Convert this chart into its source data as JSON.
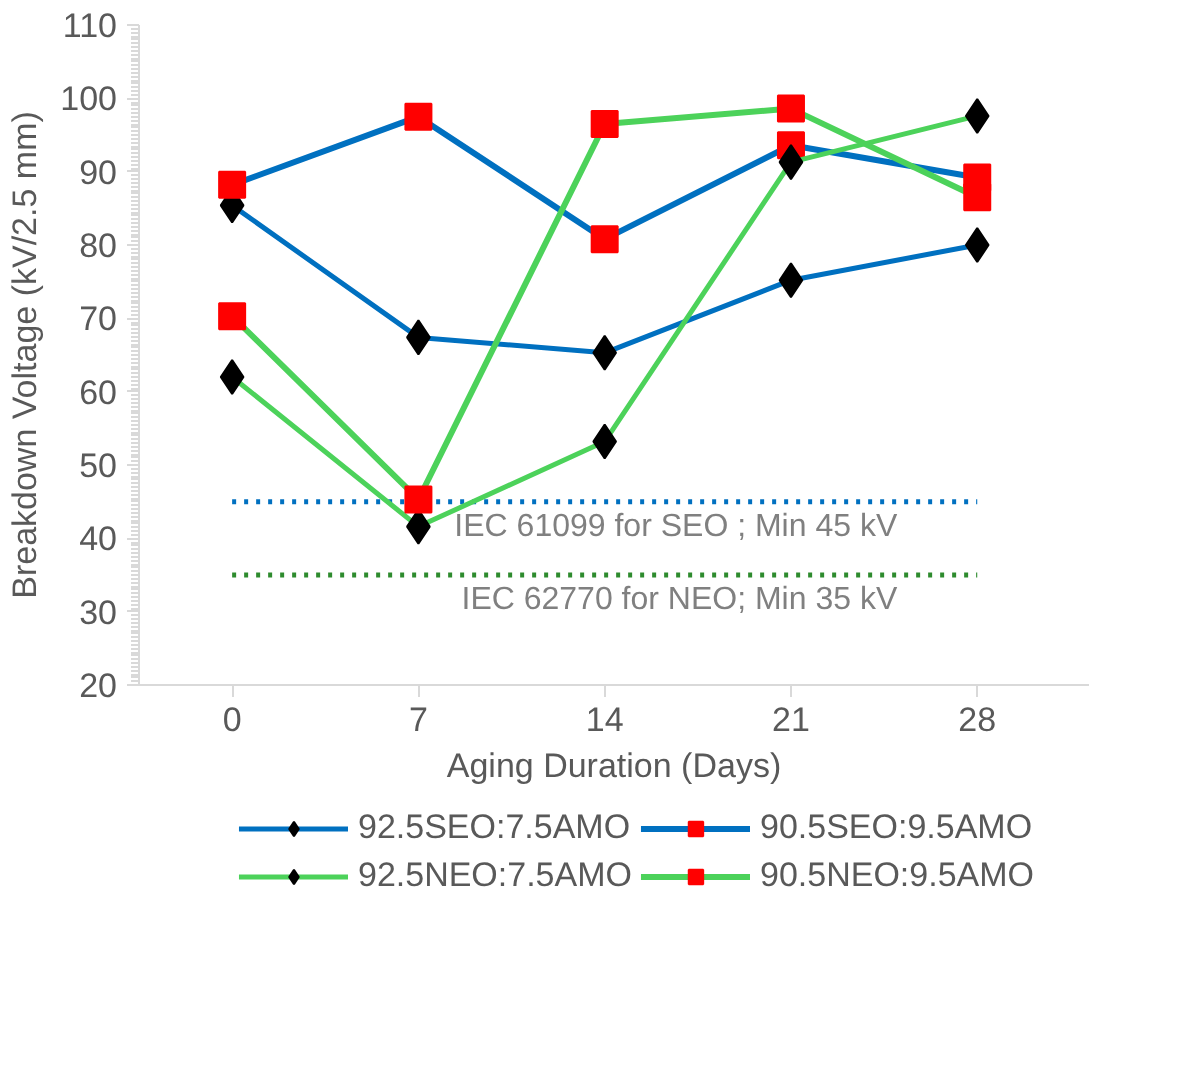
{
  "chart_data": {
    "type": "line",
    "xlabel": "Aging Duration (Days)",
    "ylabel": "Breakdown Voltage (kV/2.5 mm)",
    "categories": [
      "0",
      "7",
      "14",
      "21",
      "28"
    ],
    "ylim": [
      20,
      110
    ],
    "yticks": [
      20,
      30,
      40,
      50,
      60,
      70,
      80,
      90,
      100,
      110
    ],
    "grid": false,
    "legend": "bottom",
    "line_style": "solid",
    "series": [
      {
        "name": "92.5SEO:7.5AMO",
        "color": "#0070c0",
        "marker": "diamond",
        "values": [
          85.4,
          67.4,
          65.3,
          75.2,
          80.0
        ]
      },
      {
        "name": "90.5SEO:9.5AMO",
        "color": "#0070c0",
        "marker": "square",
        "values": [
          88.2,
          97.5,
          80.8,
          93.6,
          89.2
        ]
      },
      {
        "name": "92.5NEO:7.5AMO",
        "color": "#4cd25a",
        "marker": "diamond",
        "values": [
          62.0,
          41.6,
          53.2,
          91.3,
          97.6
        ]
      },
      {
        "name": "90.5NEO:9.5AMO",
        "color": "#4cd25a",
        "marker": "square",
        "values": [
          70.3,
          45.3,
          96.5,
          98.6,
          86.5
        ]
      }
    ],
    "ref_lines": [
      {
        "axis": "y",
        "value": 45,
        "label": "IEC 61099 for SEO ; Min 45 kV",
        "color": "#0070c0",
        "line_style": "dotted"
      },
      {
        "axis": "y",
        "value": 35,
        "label": "IEC 62770 for NEO; Min 35 kV",
        "color": "#2e8b2e",
        "line_style": "dotted"
      }
    ]
  }
}
